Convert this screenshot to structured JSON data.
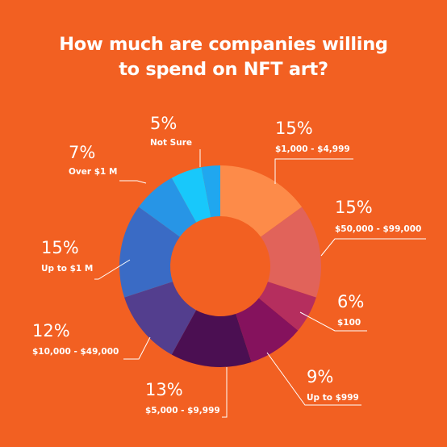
{
  "title_lines": [
    "How much are companies willing",
    "to spend on NFT art?"
  ],
  "colors": {
    "background": "#F26022",
    "text": "#FFFFFF",
    "leader": "#FFFFFF"
  },
  "chart_data": {
    "type": "pie",
    "variant": "donut",
    "title": "How much are companies willing to spend on NFT art?",
    "start_angle_deg": 0,
    "direction": "clockwise",
    "slices": [
      {
        "label": "$1,000 - $4,999",
        "pct_label": "15%",
        "value": 15,
        "color": "#FD8B49"
      },
      {
        "label": "$50,000 - $99,000",
        "pct_label": "15%",
        "value": 15,
        "color": "#E1635A"
      },
      {
        "label": "$100",
        "pct_label": "6%",
        "value": 6,
        "color": "#B52E5E"
      },
      {
        "label": "Up to $999",
        "pct_label": "9%",
        "value": 9,
        "color": "#85125D"
      },
      {
        "label": "$5,000 - $9,999",
        "pct_label": "13%",
        "value": 13,
        "color": "#4B0F52"
      },
      {
        "label": "$10,000 - $49,000",
        "pct_label": "12%",
        "value": 12,
        "color": "#533E8E"
      },
      {
        "label": "Up to $1 M",
        "pct_label": "15%",
        "value": 15,
        "color": "#3A6BC5"
      },
      {
        "label": "Over $1 M",
        "pct_label": "7%",
        "value": 7,
        "color": "#2795E6"
      },
      {
        "label": "Not Sure",
        "pct_label": "5%",
        "value": 5,
        "color": "#18C8FB"
      },
      {
        "label": "",
        "pct_label": "",
        "value": 3,
        "color": "#20A7EF"
      }
    ]
  }
}
